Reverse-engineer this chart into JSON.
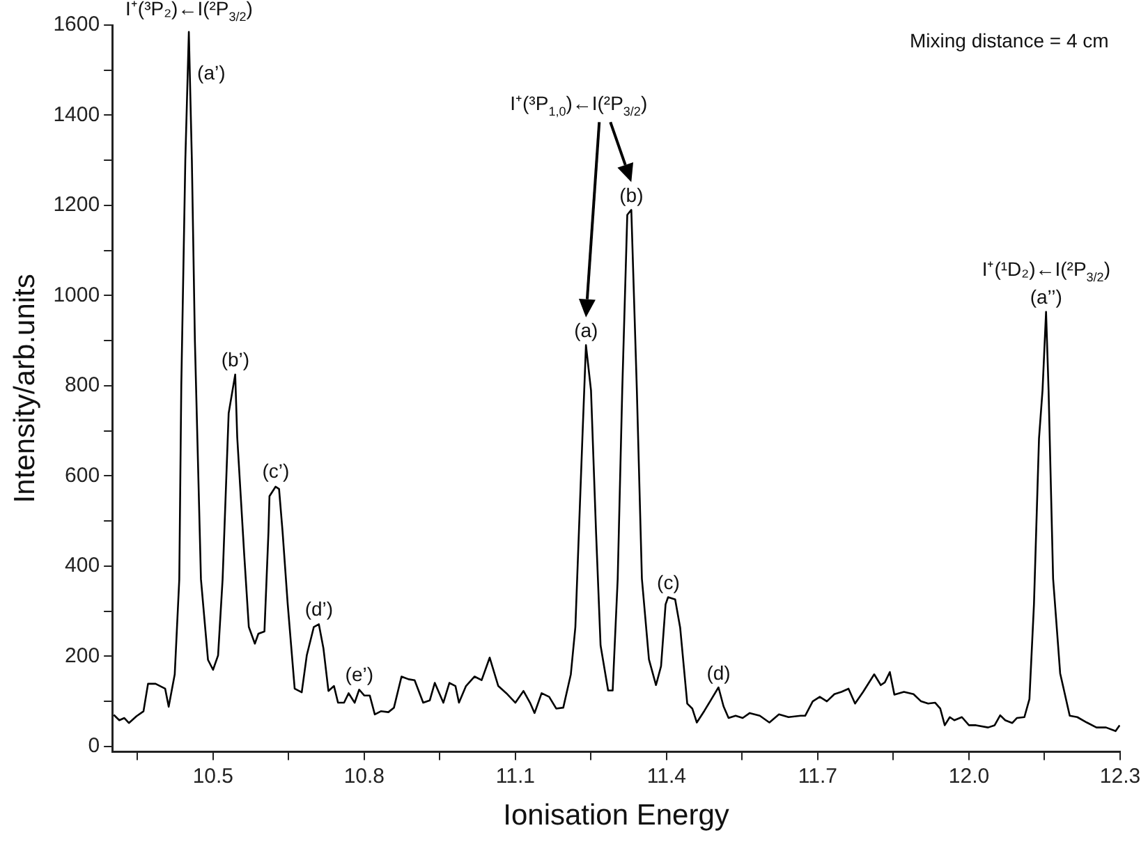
{
  "chart_data": {
    "type": "line",
    "xlabel": "Ionisation Energy",
    "ylabel": "Intensity/arb.units",
    "xlim": [
      10.3,
      12.3
    ],
    "ylim": [
      -12,
      1600
    ],
    "xticks": [
      {
        "value": 10.35,
        "label": null
      },
      10.5,
      {
        "value": 10.65,
        "label": null
      },
      10.8,
      {
        "value": 10.95,
        "label": null
      },
      11.1,
      {
        "value": 11.25,
        "label": null
      },
      11.4,
      {
        "value": 11.55,
        "label": null
      },
      11.7,
      {
        "value": 11.85,
        "label": null
      },
      {
        "value": 12.0,
        "label": "12.0"
      },
      {
        "value": 12.15,
        "label": null
      },
      12.3
    ],
    "yticks": [
      0,
      {
        "value": 100,
        "label": null
      },
      200,
      {
        "value": 300,
        "label": null
      },
      400,
      {
        "value": 500,
        "label": null
      },
      600,
      {
        "value": 700,
        "label": null
      },
      800,
      {
        "value": 900,
        "label": null
      },
      1000,
      {
        "value": 1100,
        "label": null
      },
      1200,
      {
        "value": 1300,
        "label": null
      },
      1400,
      {
        "value": 1500,
        "label": null
      },
      1600
    ],
    "grid": false,
    "legend": false,
    "marker": "none",
    "line_style": "solid",
    "series": [
      {
        "color": "#000000",
        "x": [
          10.303,
          10.314,
          10.324,
          10.333,
          10.348,
          10.362,
          10.371,
          10.386,
          10.405,
          10.412,
          10.424,
          10.433,
          10.437,
          10.445,
          10.452,
          10.458,
          10.464,
          10.476,
          10.49,
          10.5,
          10.51,
          10.519,
          10.531,
          10.544,
          10.548,
          10.562,
          10.571,
          10.583,
          10.59,
          10.602,
          10.61,
          10.612,
          10.624,
          10.631,
          10.638,
          10.648,
          10.662,
          10.676,
          10.686,
          10.7,
          10.71,
          10.719,
          10.729,
          10.74,
          10.748,
          10.76,
          10.769,
          10.781,
          10.79,
          10.8,
          10.811,
          10.821,
          10.833,
          10.848,
          10.859,
          10.874,
          10.888,
          10.9,
          10.917,
          10.93,
          10.94,
          10.957,
          10.969,
          10.981,
          10.988,
          11.002,
          11.019,
          11.033,
          11.049,
          11.066,
          11.082,
          11.1,
          11.116,
          11.129,
          11.138,
          11.152,
          11.167,
          11.181,
          11.195,
          11.21,
          11.219,
          11.233,
          11.24,
          11.25,
          11.26,
          11.269,
          11.284,
          11.293,
          11.303,
          11.312,
          11.322,
          11.33,
          11.341,
          11.351,
          11.365,
          11.379,
          11.389,
          11.398,
          11.403,
          11.417,
          11.427,
          11.441,
          11.451,
          11.46,
          11.475,
          11.489,
          11.503,
          11.513,
          11.523,
          11.537,
          11.551,
          11.565,
          11.585,
          11.604,
          11.623,
          11.642,
          11.666,
          11.675,
          11.69,
          11.704,
          11.718,
          11.733,
          11.747,
          11.761,
          11.774,
          11.79,
          11.812,
          11.825,
          11.833,
          11.843,
          11.852,
          11.871,
          11.89,
          11.905,
          11.919,
          11.933,
          11.943,
          11.952,
          11.962,
          11.971,
          11.986,
          12.0,
          12.014,
          12.038,
          12.051,
          12.062,
          12.072,
          12.086,
          12.095,
          12.11,
          12.12,
          12.129,
          12.139,
          12.146,
          12.153,
          12.158,
          12.167,
          12.181,
          12.2,
          12.215,
          12.234,
          12.253,
          12.272,
          12.291,
          12.299
        ],
        "values": [
          70,
          58,
          63,
          52,
          67,
          78,
          139,
          139,
          128,
          88,
          160,
          370,
          800,
          1300,
          1585,
          1300,
          900,
          371,
          192,
          170,
          202,
          371,
          739,
          825,
          686,
          423,
          265,
          228,
          250,
          255,
          476,
          555,
          576,
          571,
          476,
          318,
          128,
          120,
          202,
          265,
          271,
          218,
          123,
          134,
          97,
          97,
          118,
          97,
          126,
          113,
          113,
          71,
          78,
          76,
          86,
          155,
          149,
          147,
          97,
          102,
          141,
          97,
          141,
          134,
          97,
          134,
          155,
          147,
          197,
          134,
          118,
          97,
          123,
          97,
          74,
          118,
          110,
          84,
          86,
          160,
          265,
          686,
          890,
          790,
          476,
          224,
          124,
          124,
          372,
          790,
          1179,
          1190,
          790,
          372,
          193,
          136,
          178,
          315,
          331,
          326,
          263,
          95,
          84,
          53,
          79,
          105,
          131,
          89,
          63,
          68,
          63,
          74,
          68,
          53,
          71,
          65,
          68,
          68,
          100,
          110,
          100,
          116,
          121,
          128,
          95,
          121,
          160,
          136,
          142,
          165,
          115,
          121,
          116,
          100,
          95,
          97,
          84,
          47,
          65,
          58,
          65,
          47,
          47,
          42,
          47,
          69,
          58,
          52,
          63,
          65,
          105,
          315,
          683,
          790,
          964,
          790,
          372,
          162,
          68,
          65,
          53,
          42,
          42,
          34,
          47
        ]
      }
    ],
    "annotations": [
      {
        "text": "I⁺(³P₂)←I(²P$_{3/2}$)",
        "x": 10.452,
        "y": 1585
      },
      {
        "text": "(a’)",
        "x": 10.452,
        "y": 1585
      },
      {
        "text": "(b’)",
        "x": 10.544,
        "y": 825
      },
      {
        "text": "(c’)",
        "x": 10.624,
        "y": 576
      },
      {
        "text": "(d’)",
        "x": 10.71,
        "y": 271
      },
      {
        "text": "(e’)",
        "x": 10.79,
        "y": 126
      },
      {
        "text": "(a)",
        "x": 11.24,
        "y": 890
      },
      {
        "text": "(b)",
        "x": 11.33,
        "y": 1190
      },
      "I⁺(³P$_{1,0}$)←I(²P$_{3/2}$)",
      {
        "text": "(c)",
        "x": 11.403,
        "y": 331
      },
      {
        "text": "(d)",
        "x": 11.503,
        "y": 131
      },
      {
        "text": "I⁺(¹D₂)←I(²P$_{3/2}$)",
        "x": 12.153,
        "y": 964
      },
      {
        "text": "(a’’)",
        "x": 12.153,
        "y": 964
      },
      "Mixing distance = 4 cm"
    ]
  }
}
